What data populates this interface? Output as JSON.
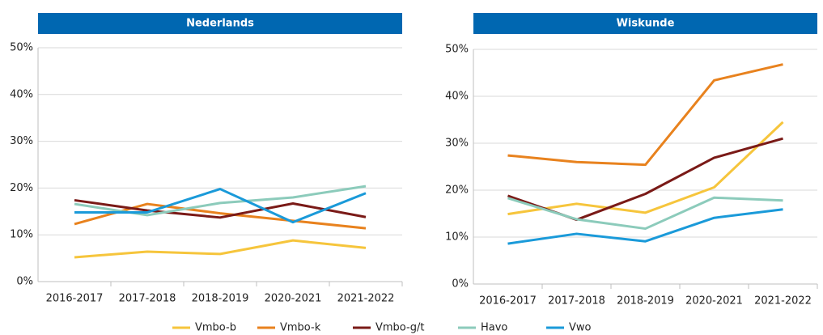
{
  "chart_data": [
    {
      "type": "line",
      "title": "Nederlands",
      "categories": [
        "2016-2017",
        "2017-2018",
        "2018-2019",
        "2020-2021",
        "2021-2022"
      ],
      "ylim": [
        0,
        50
      ],
      "yticks": [
        {
          "value": 0,
          "label": "0%"
        },
        {
          "value": 10,
          "label": "10%"
        },
        {
          "value": 20,
          "label": "20%"
        },
        {
          "value": 30,
          "label": "30%"
        },
        {
          "value": 40,
          "label": "40%"
        },
        {
          "value": 50,
          "label": "50%"
        }
      ],
      "grid": true,
      "legend": "bottom",
      "series": [
        {
          "name": "Vmbo-b",
          "color": "#f6c53c",
          "values": [
            5.2,
            6.4,
            5.9,
            8.8,
            7.2
          ]
        },
        {
          "name": "Vmbo-k",
          "color": "#e8821e",
          "values": [
            12.3,
            16.6,
            14.6,
            13.0,
            11.4
          ]
        },
        {
          "name": "Vmbo-g/t",
          "color": "#7a1a17",
          "values": [
            17.4,
            15.2,
            13.7,
            16.7,
            13.8
          ]
        },
        {
          "name": "Havo",
          "color": "#8ccbbb",
          "values": [
            16.6,
            14.2,
            16.8,
            18.0,
            20.4
          ]
        },
        {
          "name": "Vwo",
          "color": "#1a9ad9",
          "values": [
            14.8,
            14.8,
            19.8,
            12.7,
            18.9
          ]
        }
      ]
    },
    {
      "type": "line",
      "title": "Wiskunde",
      "categories": [
        "2016-2017",
        "2017-2018",
        "2018-2019",
        "2020-2021",
        "2021-2022"
      ],
      "ylim": [
        0,
        50
      ],
      "yticks": [
        {
          "value": 0,
          "label": "0%"
        },
        {
          "value": 10,
          "label": "10%"
        },
        {
          "value": 20,
          "label": "20%"
        },
        {
          "value": 30,
          "label": "30%"
        },
        {
          "value": 40,
          "label": "40%"
        },
        {
          "value": 50,
          "label": "50%"
        }
      ],
      "grid": true,
      "series": [
        {
          "color": "#f6c53c",
          "values": [
            14.9,
            17.1,
            15.2,
            20.6,
            34.5
          ]
        },
        {
          "color": "#e8821e",
          "values": [
            27.4,
            26.0,
            25.4,
            43.4,
            46.8
          ]
        },
        {
          "color": "#7a1a17",
          "values": [
            18.8,
            13.7,
            19.2,
            26.9,
            31.0
          ]
        },
        {
          "color": "#8ccbbb",
          "values": [
            18.3,
            13.8,
            11.8,
            18.4,
            17.8
          ]
        },
        {
          "color": "#1a9ad9",
          "values": [
            8.6,
            10.7,
            9.1,
            14.1,
            15.9
          ]
        }
      ]
    }
  ]
}
